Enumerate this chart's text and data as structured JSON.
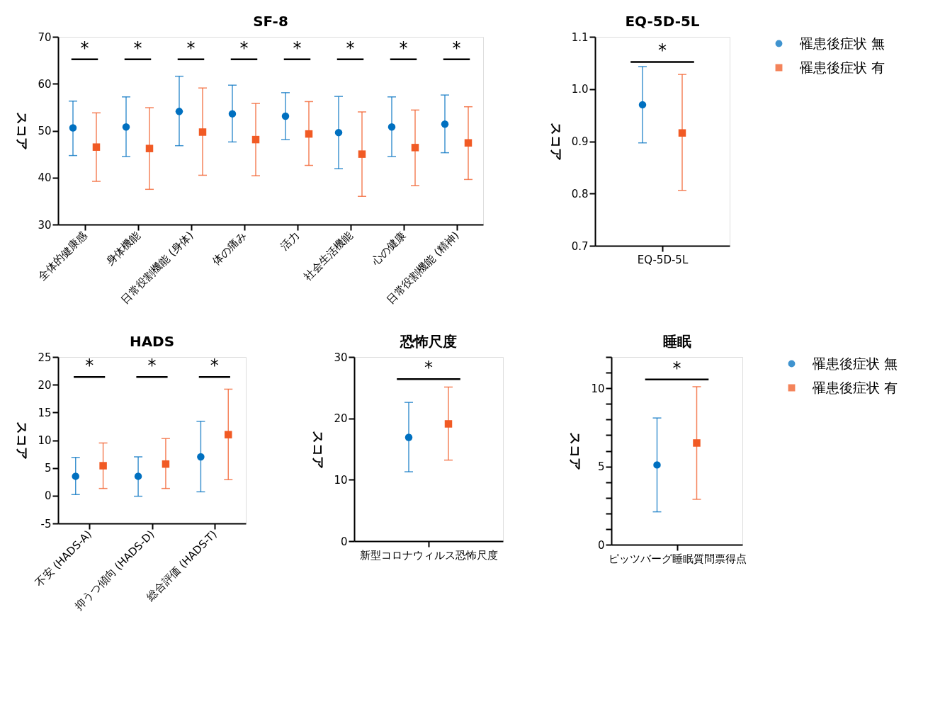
{
  "chart_data": [
    {
      "type": "scatter",
      "title": "SF-8",
      "ylabel": "スコア",
      "categories": [
        "全体的健康感",
        "身体機能",
        "日常役割機能 (身体)",
        "体の痛み",
        "活力",
        "社会生活機能",
        "心の健康",
        "日常役割機能 (精神)"
      ],
      "ylim": [
        30,
        70
      ],
      "yticks": [
        30,
        40,
        50,
        60,
        70
      ],
      "legend": false,
      "series": [
        {
          "color": "#0070c0",
          "marker": "circle",
          "values": [
            50.6,
            50.8,
            54.1,
            53.6,
            53.1,
            49.6,
            50.8,
            51.4
          ],
          "errors": [
            [
              44.7,
              56.3
            ],
            [
              44.5,
              57.2
            ],
            [
              46.8,
              61.6
            ],
            [
              47.6,
              59.7
            ],
            [
              48.1,
              58.1
            ],
            [
              41.9,
              57.3
            ],
            [
              44.5,
              57.2
            ],
            [
              45.3,
              57.6
            ]
          ]
        },
        {
          "color": "#f15a24",
          "marker": "square",
          "values": [
            46.5,
            46.2,
            49.7,
            48.1,
            49.3,
            45.0,
            46.4,
            47.4
          ],
          "errors": [
            [
              39.2,
              53.8
            ],
            [
              37.5,
              54.9
            ],
            [
              40.5,
              59.1
            ],
            [
              40.4,
              55.8
            ],
            [
              42.6,
              56.2
            ],
            [
              36.0,
              54.0
            ],
            [
              38.3,
              54.4
            ],
            [
              39.6,
              55.1
            ]
          ]
        }
      ],
      "annotations": [
        "*",
        "*",
        "*",
        "*",
        "*",
        "*",
        "*",
        "*"
      ]
    },
    {
      "type": "scatter",
      "title": "EQ-5D-5L",
      "ylabel": "スコア",
      "categories": [
        "EQ-5D-5L"
      ],
      "ylim": [
        0.7,
        1.1
      ],
      "yticks": [
        {
          "value": 0.7,
          "label": "0.7"
        },
        {
          "value": 0.8,
          "label": "0.8"
        },
        {
          "value": 0.9,
          "label": "0.9"
        },
        {
          "value": 1.0,
          "label": "1.0"
        },
        {
          "value": 1.1,
          "label": "1.1"
        }
      ],
      "legend": "right",
      "series": [
        {
          "name": "罹患後症状 無",
          "color": "#0070c0",
          "marker": "circle",
          "values": [
            0.97
          ],
          "errors": [
            [
              0.897,
              1.043
            ]
          ]
        },
        {
          "name": "罹患後症状 有",
          "color": "#f15a24",
          "marker": "square",
          "values": [
            0.916
          ],
          "errors": [
            [
              0.806,
              1.028
            ]
          ]
        }
      ],
      "annotations": [
        "*"
      ]
    },
    {
      "type": "scatter",
      "title": "HADS",
      "ylabel": "スコア",
      "categories": [
        "不安 (HADS-A)",
        "抑うつ傾向 (HADS-D)",
        "総合評価 (HADS-T)"
      ],
      "ylim": [
        -5,
        25
      ],
      "yticks": [
        -5,
        0,
        5,
        10,
        15,
        20,
        25
      ],
      "legend": false,
      "series": [
        {
          "color": "#0070c0",
          "marker": "circle",
          "values": [
            3.5,
            3.5,
            7.0
          ],
          "errors": [
            [
              0.2,
              6.9
            ],
            [
              -0.1,
              7.0
            ],
            [
              0.7,
              13.4
            ]
          ]
        },
        {
          "color": "#f15a24",
          "marker": "square",
          "values": [
            5.4,
            5.7,
            11.0
          ],
          "errors": [
            [
              1.3,
              9.5
            ],
            [
              1.3,
              10.3
            ],
            [
              2.9,
              19.2
            ]
          ]
        }
      ],
      "annotations": [
        "*",
        "*",
        "*"
      ]
    },
    {
      "type": "scatter",
      "title": "恐怖尺度",
      "ylabel": "スコア",
      "categories": [
        "新型コロナウィルス恐怖尺度"
      ],
      "ylim": [
        0,
        30
      ],
      "yticks": [
        0,
        10,
        20,
        30
      ],
      "legend": false,
      "series": [
        {
          "color": "#0070c0",
          "marker": "circle",
          "values": [
            16.9
          ],
          "errors": [
            [
              11.3,
              22.6
            ]
          ]
        },
        {
          "color": "#f15a24",
          "marker": "square",
          "values": [
            19.1
          ],
          "errors": [
            [
              13.2,
              25.1
            ]
          ]
        }
      ],
      "annotations": [
        "*"
      ]
    },
    {
      "type": "scatter",
      "title": "睡眠",
      "ylabel": "スコア",
      "categories": [
        "ピッツバーグ睡眠質問票得点"
      ],
      "ylim": [
        0,
        12
      ],
      "yticks": [
        0,
        {
          "value": 1,
          "label": null
        },
        {
          "value": 2,
          "label": null
        },
        {
          "value": 3,
          "label": null
        },
        {
          "value": 4,
          "label": null
        },
        5,
        {
          "value": 6,
          "label": null
        },
        {
          "value": 7,
          "label": null
        },
        {
          "value": 8,
          "label": null
        },
        {
          "value": 9,
          "label": null
        },
        10,
        {
          "value": 11,
          "label": null
        },
        {
          "value": 12,
          "label": null
        }
      ],
      "legend": "right",
      "series": [
        {
          "name": "罹患後症状 無",
          "color": "#0070c0",
          "marker": "circle",
          "values": [
            5.1
          ],
          "errors": [
            [
              2.1,
              8.1
            ]
          ]
        },
        {
          "name": "罹患後症状 有",
          "color": "#f15a24",
          "marker": "square",
          "values": [
            6.5
          ],
          "errors": [
            [
              2.9,
              10.1
            ]
          ]
        }
      ],
      "annotations": [
        "*"
      ]
    }
  ]
}
